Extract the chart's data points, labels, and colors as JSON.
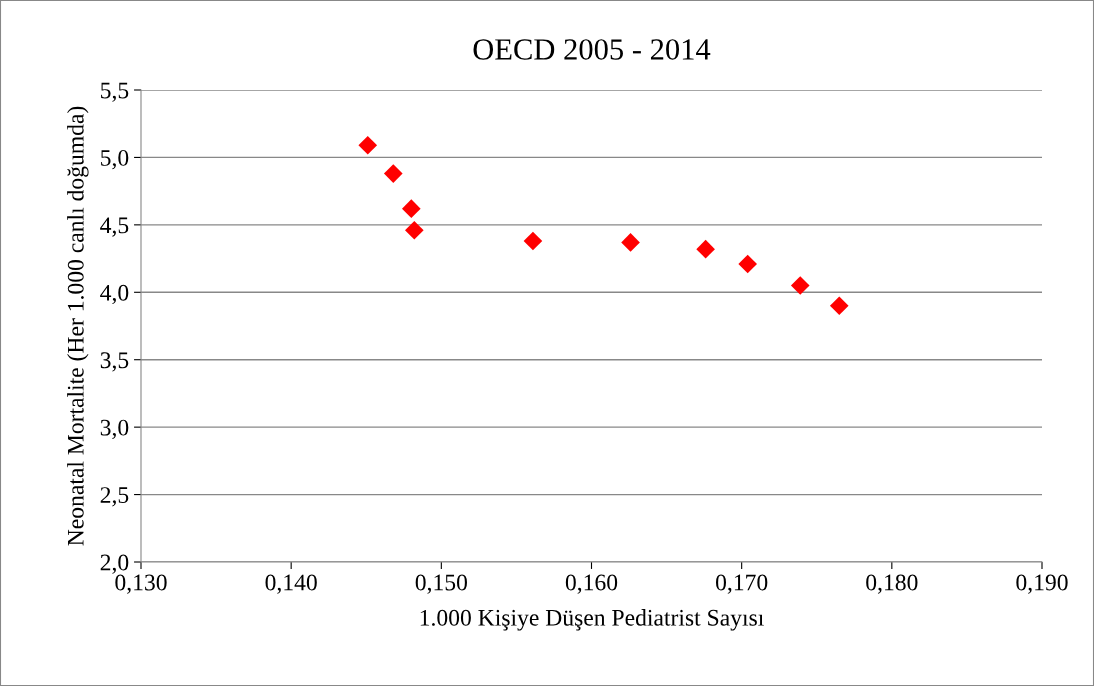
{
  "chart_data": {
    "type": "scatter",
    "title": "OECD 2005 - 2014",
    "xlabel": "1.000 Kişiye Düşen Pediatrist Sayısı",
    "ylabel": "Neonatal Mortalite (Her 1.000 canlı doğumda)",
    "x": [
      0.1451,
      0.1468,
      0.148,
      0.1482,
      0.1561,
      0.1626,
      0.1676,
      0.1704,
      0.1739,
      0.1765
    ],
    "values": [
      5.09,
      4.88,
      4.62,
      4.46,
      4.38,
      4.37,
      4.32,
      4.21,
      4.05,
      3.9
    ],
    "color": "#ff0000",
    "marker": "diamond",
    "grid": "y",
    "legend": false,
    "xlim": [
      0.13,
      0.19
    ],
    "xticks": [
      {
        "value": 0.13,
        "label": "0,130"
      },
      {
        "value": 0.14,
        "label": "0,140"
      },
      {
        "value": 0.15,
        "label": "0,150"
      },
      {
        "value": 0.16,
        "label": "0,160"
      },
      {
        "value": 0.17,
        "label": "0,170"
      },
      {
        "value": 0.18,
        "label": "0,180"
      },
      {
        "value": 0.19,
        "label": "0,190"
      }
    ],
    "ylim": [
      2.0,
      5.5
    ],
    "yticks": [
      {
        "value": 2.0,
        "label": "2,0"
      },
      {
        "value": 2.5,
        "label": "2,5"
      },
      {
        "value": 3.0,
        "label": "3,0"
      },
      {
        "value": 3.5,
        "label": "3,5"
      },
      {
        "value": 4.0,
        "label": "4,0"
      },
      {
        "value": 4.5,
        "label": "4,5"
      },
      {
        "value": 5.0,
        "label": "5,0"
      },
      {
        "value": 5.5,
        "label": "5,5"
      }
    ]
  }
}
